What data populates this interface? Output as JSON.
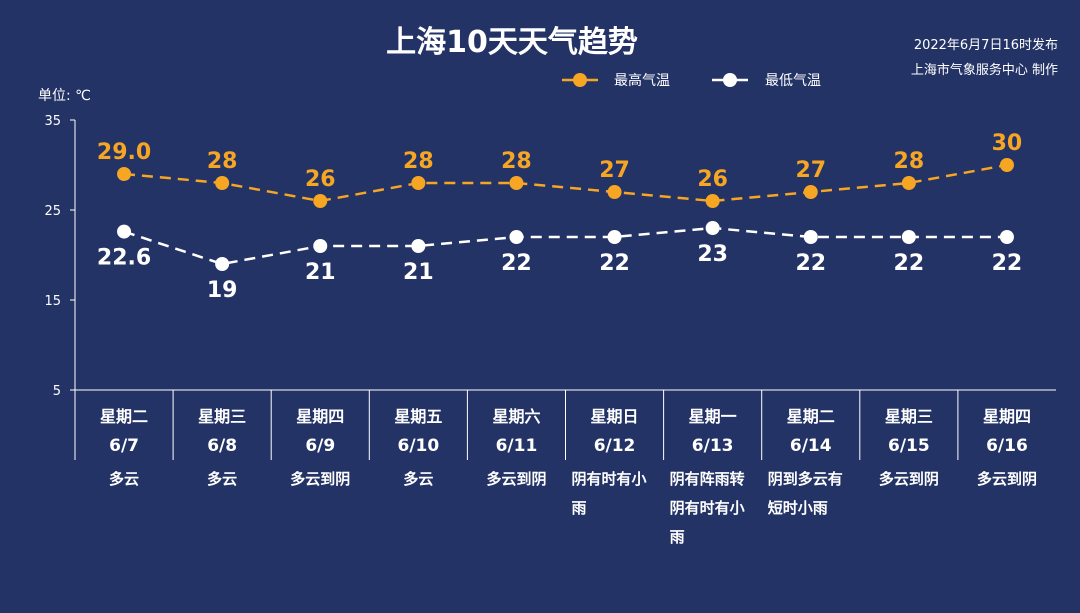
{
  "header": {
    "title": "上海10天天气趋势",
    "issued": "2022年6月7日16时发布",
    "producer": "上海市气象服务中心 制作"
  },
  "colors": {
    "background": "#243366",
    "high": "#f6a623",
    "low": "#ffffff"
  },
  "chart_data": {
    "type": "line",
    "title": "上海10天天气趋势",
    "ylabel": "单位: ℃",
    "ylim": [
      5,
      35
    ],
    "yticks": [
      5,
      15,
      25,
      35
    ],
    "legend_position": "top-right",
    "categories": [
      {
        "day": "星期二",
        "date": "6/7",
        "weather": [
          "多云"
        ]
      },
      {
        "day": "星期三",
        "date": "6/8",
        "weather": [
          "多云"
        ]
      },
      {
        "day": "星期四",
        "date": "6/9",
        "weather": [
          "多云到阴"
        ]
      },
      {
        "day": "星期五",
        "date": "6/10",
        "weather": [
          "多云"
        ]
      },
      {
        "day": "星期六",
        "date": "6/11",
        "weather": [
          "多云到阴"
        ]
      },
      {
        "day": "星期日",
        "date": "6/12",
        "weather": [
          "阴有时有小",
          "雨"
        ]
      },
      {
        "day": "星期一",
        "date": "6/13",
        "weather": [
          "阴有阵雨转",
          "阴有时有小",
          "雨"
        ]
      },
      {
        "day": "星期二",
        "date": "6/14",
        "weather": [
          "阴到多云有",
          "短时小雨"
        ]
      },
      {
        "day": "星期三",
        "date": "6/15",
        "weather": [
          "多云到阴"
        ]
      },
      {
        "day": "星期四",
        "date": "6/16",
        "weather": [
          "多云到阴"
        ]
      }
    ],
    "series": [
      {
        "name": "最高气温",
        "color": "#f6a623",
        "values": [
          29.0,
          28,
          26,
          28,
          28,
          27,
          26,
          27,
          28,
          30
        ],
        "labels": [
          "29.0",
          "28",
          "26",
          "28",
          "28",
          "27",
          "26",
          "27",
          "28",
          "30"
        ]
      },
      {
        "name": "最低气温",
        "color": "#ffffff",
        "values": [
          22.6,
          19,
          21,
          21,
          22,
          22,
          23,
          22,
          22,
          22
        ],
        "labels": [
          "22.6",
          "19",
          "21",
          "21",
          "22",
          "22",
          "23",
          "22",
          "22",
          "22"
        ]
      }
    ]
  }
}
